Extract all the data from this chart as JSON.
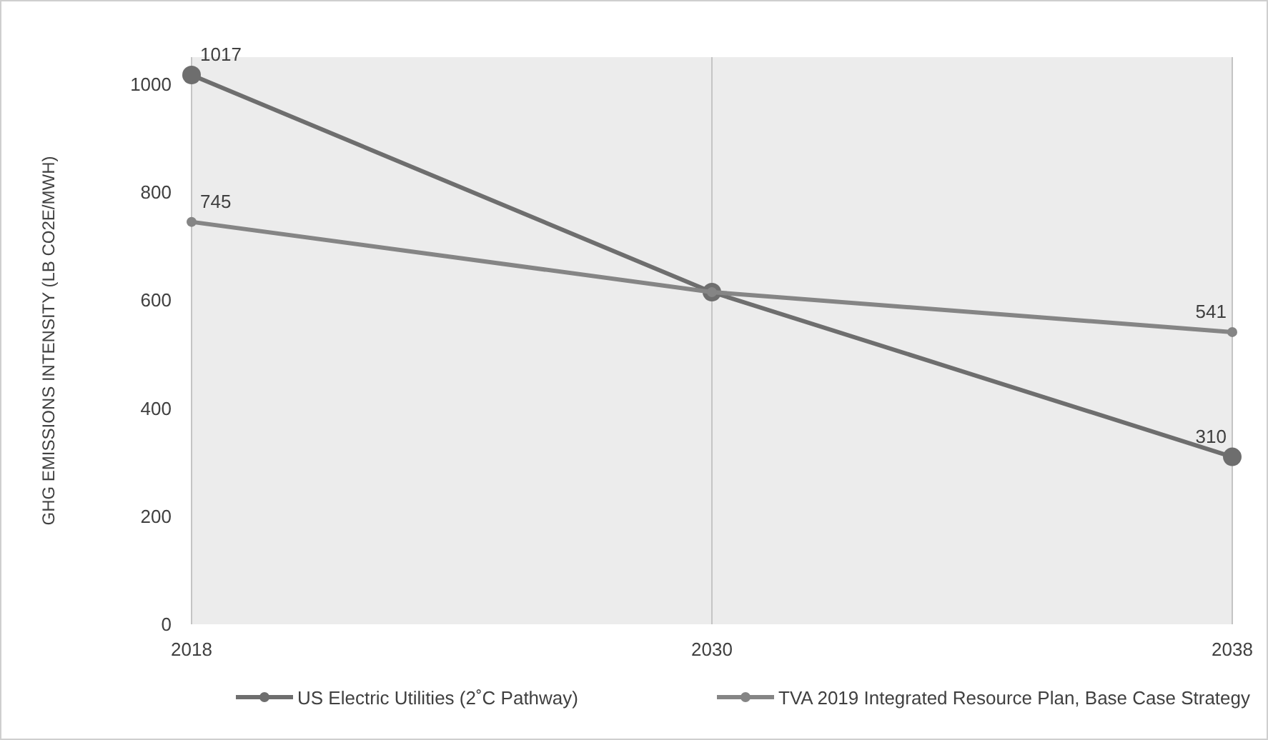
{
  "chart_data": {
    "type": "line",
    "ylabel": "GHG EMISSIONS INTENSITY (LB CO2E/MWH)",
    "categories": [
      "2018",
      "2030",
      "2038"
    ],
    "series": [
      {
        "name": "US Electric Utilities (2˚C Pathway)",
        "color": "#6e6e6e",
        "values": [
          1017,
          615,
          310
        ],
        "value_labels": [
          "1017",
          null,
          "310"
        ]
      },
      {
        "name": "TVA 2019 Integrated Resource Plan, Base Case Strategy",
        "color": "#858585",
        "values": [
          745,
          615,
          541
        ],
        "value_labels": [
          "745",
          null,
          "541"
        ]
      }
    ],
    "ylim": [
      0,
      1050
    ],
    "yticks": [
      0,
      200,
      400,
      600,
      800,
      1000
    ],
    "grid": "x",
    "legend": "bottom",
    "marker": "circle",
    "line_style": "solid"
  }
}
